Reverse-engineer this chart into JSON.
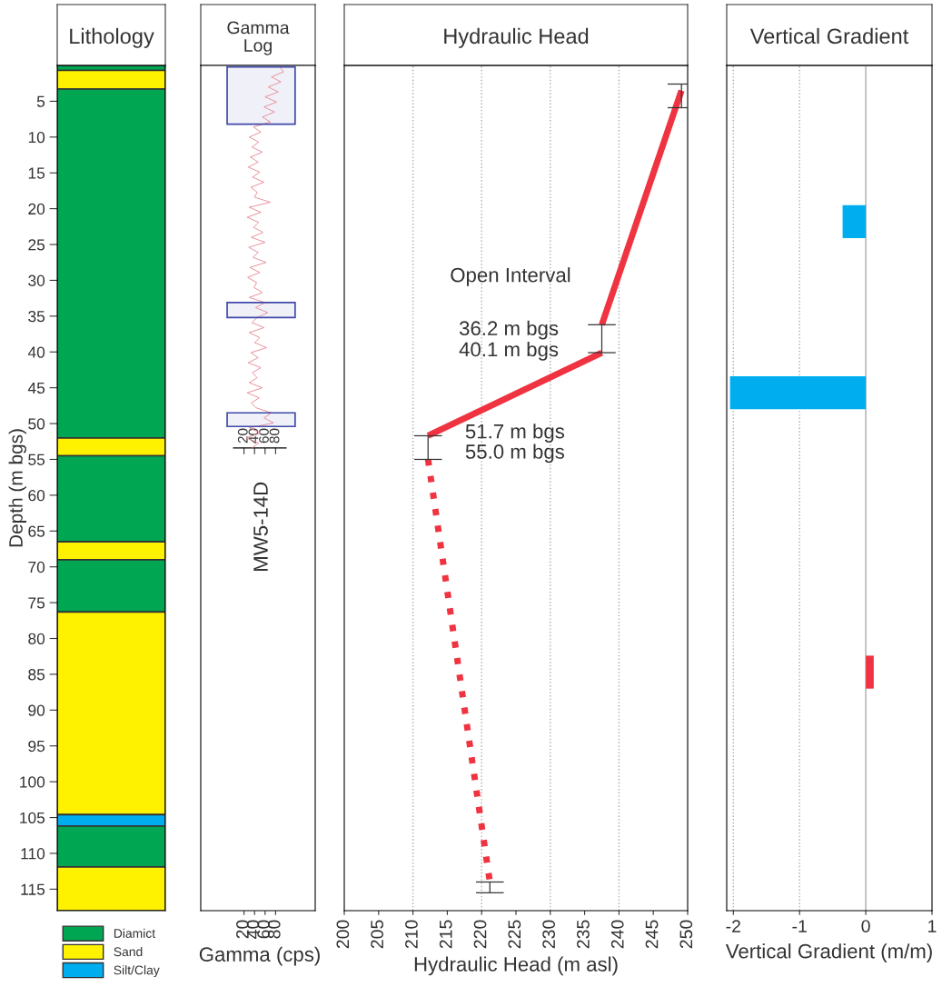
{
  "chart_data": [
    {
      "type": "bar",
      "title": "Lithology",
      "stacked": true,
      "categories": [
        null
      ],
      "ylabel": "Depth (m bgs)",
      "ylim": [
        118,
        0
      ],
      "yticks": [
        5,
        10,
        15,
        20,
        25,
        30,
        35,
        40,
        45,
        50,
        55,
        60,
        65,
        70,
        75,
        80,
        85,
        90,
        95,
        100,
        105,
        110,
        115
      ],
      "tick_labels": "y",
      "legend": "bottom",
      "series": [
        {
          "name": "Diamict",
          "color": "#00a651",
          "values": [
            0.7
          ]
        },
        {
          "name": "Sand",
          "color": "#fff200",
          "values": [
            2.6
          ]
        },
        {
          "color": "#00a651",
          "values": [
            48.7
          ]
        },
        {
          "color": "#fff200",
          "values": [
            2.5
          ]
        },
        {
          "color": "#00a651",
          "values": [
            12.0
          ]
        },
        {
          "color": "#fff200",
          "values": [
            2.5
          ]
        },
        {
          "color": "#00a651",
          "values": [
            7.3
          ]
        },
        {
          "color": "#fff200",
          "values": [
            28.3
          ]
        },
        {
          "name": "Silt/Clay",
          "color": "#00aeef",
          "values": [
            1.6
          ]
        },
        {
          "color": "#00a651",
          "values": [
            5.7
          ]
        },
        {
          "color": "#fff200",
          "values": [
            6.1
          ]
        }
      ]
    },
    {
      "type": "line",
      "title": "Gamma\nLog",
      "orientation": "horizontal",
      "xlabel": "Gamma (cps)",
      "xlim": [
        0,
        100
      ],
      "xticks": [
        20,
        40,
        60,
        80
      ],
      "x2lim": [
        0,
        100
      ],
      "x2ticks": [
        20,
        40,
        60,
        80
      ],
      "ylim": [
        118,
        0
      ],
      "tick_labels": "x",
      "annotations": [
        "MW5-14D"
      ],
      "bands": [
        {
          "axis": "y",
          "from": 0.2,
          "to": 8.2,
          "color": "#3f48a8"
        },
        {
          "axis": "y",
          "from": 33.1,
          "to": 35.2,
          "color": "#3f48a8"
        },
        {
          "axis": "y",
          "from": 48.5,
          "to": 50.4,
          "color": "#3f48a8"
        }
      ],
      "series": [
        {
          "color": "#e8909a",
          "x": [
            0.2,
            0.9,
            1.6,
            2.3,
            3.0,
            3.7,
            4.4,
            5.1,
            5.8,
            6.5,
            7.2,
            7.9,
            8.6,
            9.3,
            10.0,
            10.7,
            11.4,
            12.1,
            12.8,
            13.5,
            14.2,
            14.9,
            15.6,
            16.3,
            17.0,
            17.7,
            18.4,
            19.1,
            19.8,
            20.5,
            21.2,
            21.9,
            22.6,
            23.3,
            24.0,
            24.7,
            25.4,
            26.1,
            26.8,
            27.5,
            28.2,
            28.9,
            29.6,
            30.3,
            31.0,
            31.7,
            32.4,
            33.1,
            33.8,
            34.5,
            35.2,
            35.9,
            36.6,
            37.3,
            38.0,
            38.7,
            39.4,
            40.1,
            40.8,
            41.5,
            42.2,
            42.9,
            43.6,
            44.3,
            45.0,
            45.7,
            46.4,
            47.1,
            47.8,
            48.5,
            49.2,
            49.9,
            50.6,
            51.3,
            52.0,
            52.7,
            53.4
          ],
          "values": [
            88,
            95,
            72,
            90,
            66,
            85,
            60,
            82,
            58,
            78,
            55,
            70,
            38,
            52,
            30,
            48,
            35,
            55,
            32,
            47,
            28,
            50,
            36,
            58,
            33,
            45,
            40,
            70,
            30,
            52,
            26,
            48,
            38,
            56,
            34,
            60,
            29,
            47,
            37,
            62,
            31,
            50,
            27,
            44,
            39,
            55,
            30,
            60,
            42,
            65,
            45,
            35,
            58,
            30,
            50,
            40,
            63,
            33,
            47,
            28,
            52,
            36,
            45,
            30,
            55,
            26,
            49,
            34,
            43,
            72,
            58,
            76,
            30,
            52,
            24,
            48,
            35
          ]
        }
      ]
    },
    {
      "type": "line",
      "title": "Hydraulic Head",
      "orientation": "horizontal",
      "xlabel": "Hydraulic Head (m asl)",
      "xlim": [
        200,
        250
      ],
      "xticks": [
        200,
        205,
        210,
        215,
        220,
        225,
        230,
        235,
        240,
        245,
        250
      ],
      "ylim": [
        118,
        0
      ],
      "tick_labels": "x",
      "ref_lines": [
        {
          "axis": "x",
          "value": 210,
          "color": "#aaaaaa",
          "line_style": "dotted"
        },
        {
          "axis": "x",
          "value": 220,
          "color": "#aaaaaa",
          "line_style": "dotted"
        },
        {
          "axis": "x",
          "value": 230,
          "color": "#aaaaaa",
          "line_style": "dotted"
        },
        {
          "axis": "x",
          "value": 240,
          "color": "#aaaaaa",
          "line_style": "dotted"
        }
      ],
      "annotations": [
        "Open Interval",
        "36.2 m bgs",
        "40.1 m bgs",
        "51.7 m bgs",
        "55.0 m bgs"
      ],
      "series": [
        {
          "color": "#ef3340",
          "line_style": "solid",
          "x": [
            3.5,
            36.2
          ],
          "values": [
            249.1,
            237.5
          ],
          "xerrors": [
            [
              2.6,
              5.9
            ],
            [
              36.2,
              40.1
            ]
          ]
        },
        {
          "color": "#ef3340",
          "line_style": "solid",
          "x": [
            40.1,
            51.7
          ],
          "values": [
            237.5,
            212.2
          ]
        },
        {
          "color": "#ef3340",
          "line_style": "dotted",
          "x": [
            55.0,
            114.0
          ],
          "values": [
            212.2,
            221.2
          ],
          "xerrors": [
            [
              51.7,
              55.0
            ],
            [
              114.0,
              115.5
            ]
          ]
        }
      ]
    },
    {
      "type": "bar",
      "title": "Vertical Gradient",
      "orientation": "horizontal",
      "xlabel": "Vertical Gradient (m/m)",
      "xlim": [
        -2.1,
        1
      ],
      "xticks": [
        -2,
        -1,
        0,
        1
      ],
      "ylim": [
        118,
        0
      ],
      "tick_labels": "x",
      "ref_lines": [
        {
          "axis": "x",
          "value": -2,
          "color": "#aaaaaa",
          "line_style": "dotted"
        },
        {
          "axis": "x",
          "value": -1,
          "color": "#aaaaaa",
          "line_style": "dotted"
        },
        {
          "axis": "x",
          "value": 0,
          "color": "#aaaaaa",
          "line_style": "solid"
        }
      ],
      "series": [
        {
          "x": [
            21.8,
            45.7,
            84.7
          ],
          "values": [
            -0.35,
            -2.05,
            0.12
          ],
          "colors": [
            "#00aeef",
            "#00aeef",
            "#ef3340"
          ]
        }
      ]
    }
  ]
}
